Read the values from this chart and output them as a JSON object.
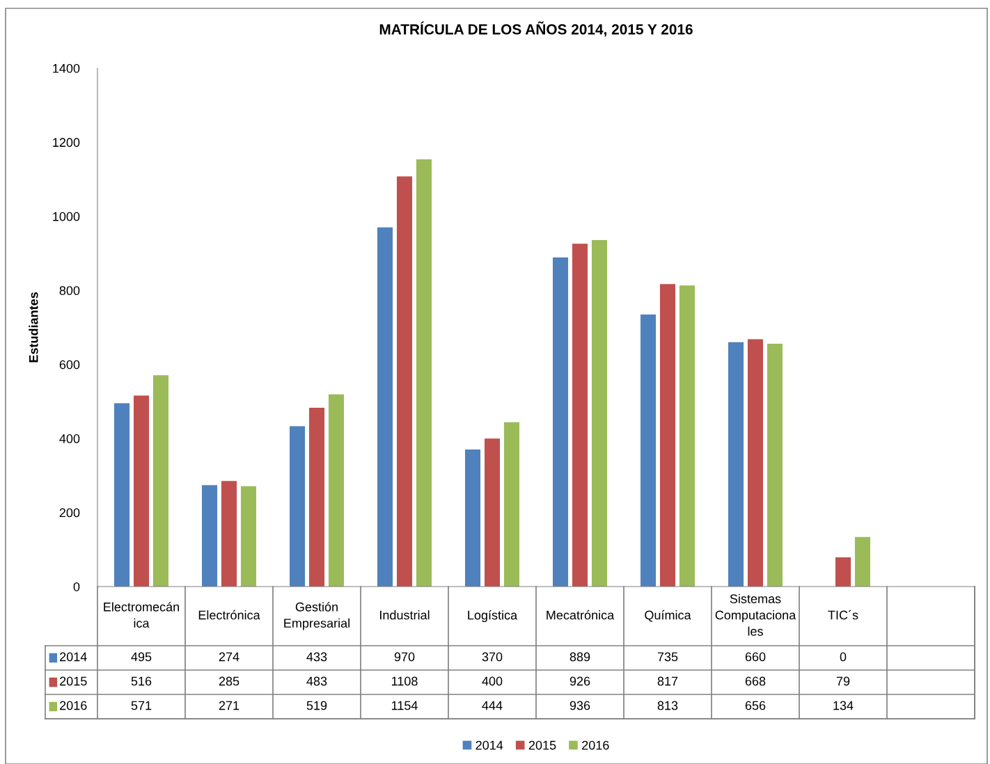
{
  "chart_data": {
    "type": "bar",
    "title": "MATRÍCULA DE LOS AÑOS 2014, 2015 Y 2016",
    "ylabel": "Estudiantes",
    "categories": [
      "Electromecánica",
      "Electrónica",
      "Gestión Empresarial",
      "Industrial",
      "Logística",
      "Mecatrónica",
      "Química",
      "Sistemas Computacionales",
      "TIC´s",
      null
    ],
    "series": [
      {
        "name": "2014",
        "color": "#4f81bd",
        "values": [
          495,
          274,
          433,
          970,
          370,
          889,
          735,
          660,
          0,
          null
        ]
      },
      {
        "name": "2015",
        "color": "#c0504d",
        "values": [
          516,
          285,
          483,
          1108,
          400,
          926,
          817,
          668,
          79,
          null
        ]
      },
      {
        "name": "2016",
        "color": "#9bbb59",
        "values": [
          571,
          271,
          519,
          1154,
          444,
          936,
          813,
          656,
          134,
          null
        ]
      }
    ],
    "ylim": [
      0,
      1400
    ],
    "yticks": [
      0,
      200,
      400,
      600,
      800,
      1000,
      1200,
      1400
    ],
    "grid": false,
    "legend": "bottom",
    "data_labels": true
  }
}
